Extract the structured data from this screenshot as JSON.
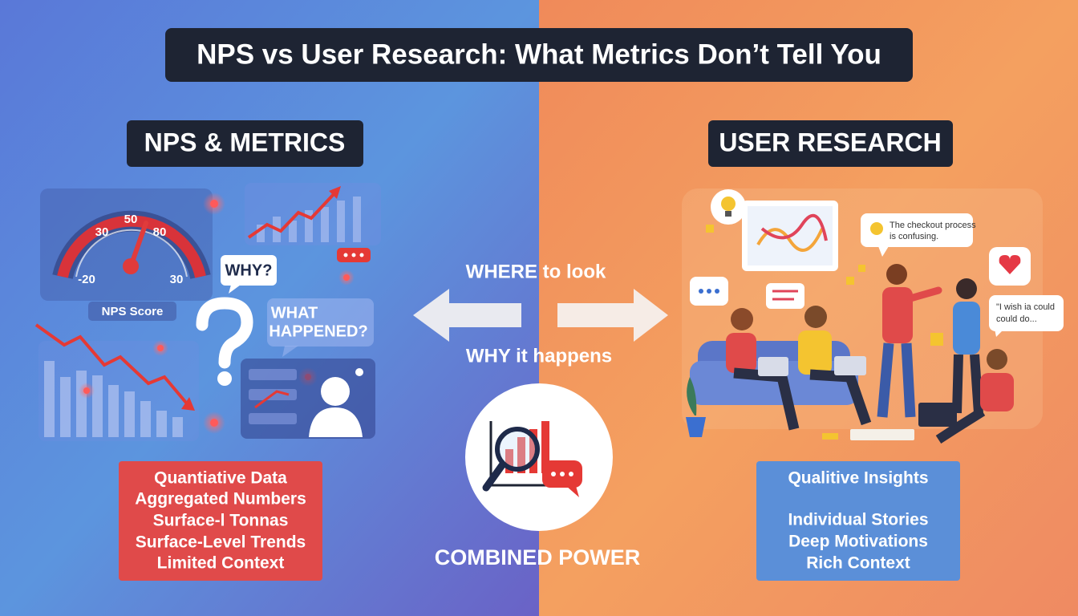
{
  "title": "NPS vs User Research: What Metrics Don’t Tell You",
  "left": {
    "heading": "NPS & METRICS",
    "gauge_labels": [
      "50",
      "30",
      "80",
      "-20",
      "30"
    ],
    "gauge_caption": "NPS Score",
    "why_bubble": "WHY?",
    "what_bubble": [
      "WHAT",
      "HAPPENED?"
    ],
    "list": [
      "Quantiative Data",
      "Aggregated Numbers",
      "Surface-l Tonnas",
      "Surface-Level Trends",
      "Limited Context"
    ]
  },
  "center": {
    "top_label": "WHERE to look",
    "bottom_label": "WHY it happens",
    "caption": "COMBINED POWER"
  },
  "right": {
    "heading": "USER RESEARCH",
    "quote_1": [
      "The checkout process",
      "is confusing."
    ],
    "quote_2": [
      "\"I wish ia could",
      "could do..."
    ],
    "list": [
      "Qualitive Insights",
      "Individual Stories",
      "Deep Motivations",
      "Rich Context"
    ]
  }
}
